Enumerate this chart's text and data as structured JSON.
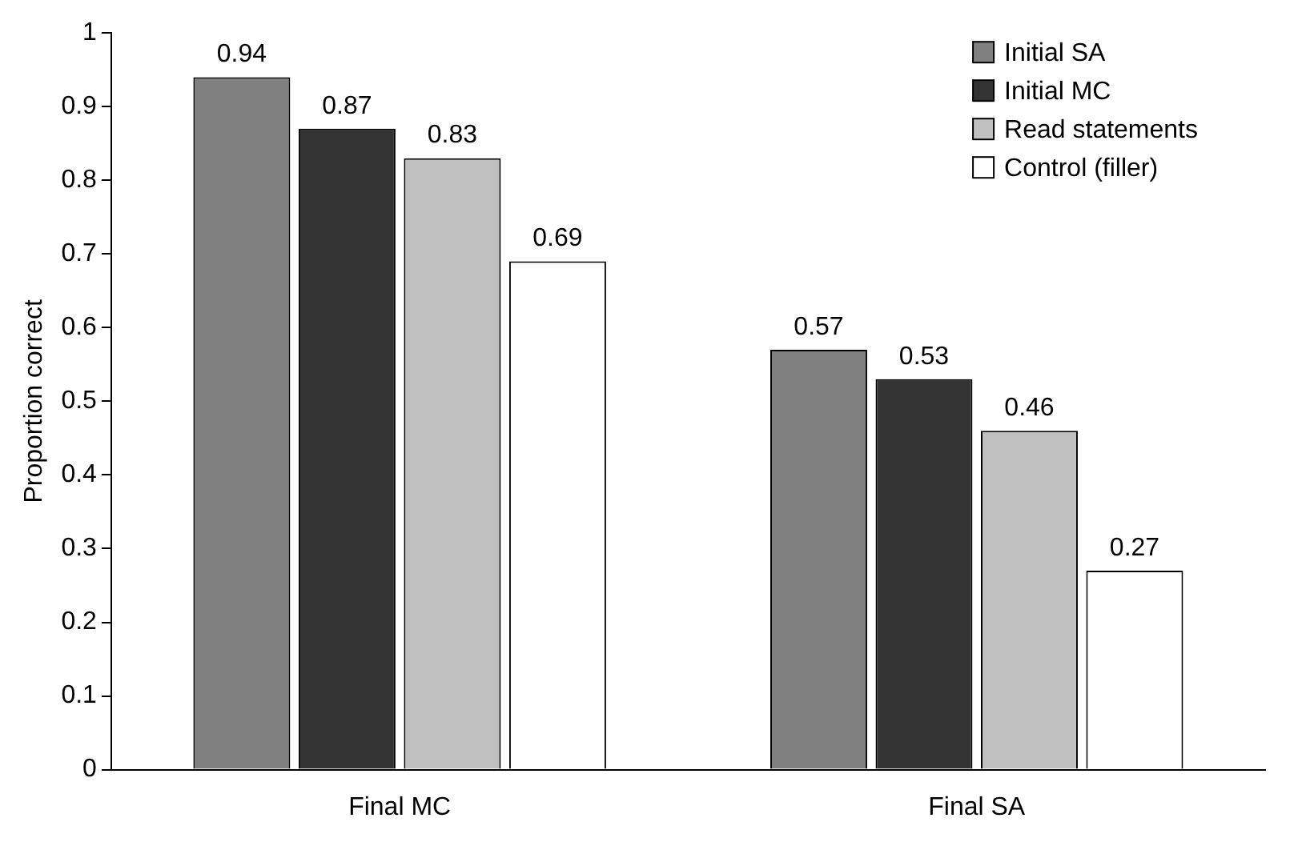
{
  "chart_data": {
    "type": "bar",
    "ylabel": "Proportion correct",
    "categories": [
      "Final MC",
      "Final SA"
    ],
    "series": [
      {
        "name": "Initial SA",
        "color": "#808080",
        "values": [
          0.94,
          0.57
        ]
      },
      {
        "name": "Initial MC",
        "color": "#333333",
        "values": [
          0.87,
          0.53
        ]
      },
      {
        "name": "Read statements",
        "color": "#c0c0c0",
        "values": [
          0.83,
          0.46
        ]
      },
      {
        "name": "Control (filler)",
        "color": "#ffffff",
        "values": [
          0.69,
          0.27
        ]
      }
    ],
    "ylim": [
      0,
      1
    ],
    "yticks": [
      0,
      0.1,
      0.2,
      0.3,
      0.4,
      0.5,
      0.6,
      0.7,
      0.8,
      0.9,
      1
    ],
    "grid": false,
    "legend": "top right",
    "data_labels": true
  }
}
